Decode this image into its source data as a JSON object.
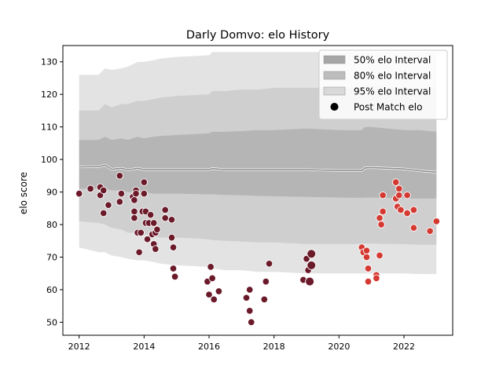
{
  "chart_data": {
    "type": "scatter",
    "title": "Darly Domvo: elo History",
    "xlabel": "",
    "ylabel": "elo score",
    "xlim": [
      2011.5,
      2023.5
    ],
    "ylim": [
      46,
      135
    ],
    "xticks": [
      2012,
      2014,
      2016,
      2018,
      2020,
      2022
    ],
    "yticks": [
      50,
      60,
      70,
      80,
      90,
      100,
      110,
      120,
      130
    ],
    "grid": false,
    "legend_position": "top-right",
    "legend": [
      {
        "label": "50% elo Interval",
        "color": "#a6a6a6",
        "kind": "band"
      },
      {
        "label": "80% elo Interval",
        "color": "#bdbdbd",
        "kind": "band"
      },
      {
        "label": "95% elo Interval",
        "color": "#d9d9d9",
        "kind": "band"
      },
      {
        "label": "Post Match elo",
        "color": "#000000",
        "kind": "marker"
      }
    ],
    "bands": {
      "x": [
        2012.0,
        2012.6,
        2012.8,
        2013.0,
        2013.3,
        2013.5,
        2013.8,
        2014.0,
        2014.3,
        2014.5,
        2015.0,
        2016.0,
        2016.1,
        2016.5,
        2017.0,
        2017.5,
        2018.0,
        2019.0,
        2020.0,
        2020.7,
        2020.8,
        2021.0,
        2021.5,
        2022.0,
        2022.5,
        2023.0
      ],
      "mean": [
        97.7,
        97.8,
        98.3,
        97.0,
        97.3,
        96.8,
        97.3,
        96.9,
        96.9,
        96.9,
        96.9,
        96.9,
        97.2,
        96.9,
        96.9,
        96.9,
        96.9,
        96.9,
        96.6,
        96.6,
        97.4,
        97.5,
        97.3,
        97.1,
        96.5,
        96.1
      ],
      "p50_lo": [
        91.0,
        91.0,
        91.0,
        90.5,
        90.5,
        90.0,
        90.0,
        90.0,
        89.5,
        89.5,
        89.5,
        89.3,
        89.3,
        89.1,
        89.0,
        88.8,
        88.7,
        88.5,
        88.3,
        88.2,
        88.3,
        88.3,
        88.2,
        88.1,
        88.0,
        88.0
      ],
      "p50_hi": [
        106.0,
        106.0,
        107.0,
        106.0,
        106.5,
        106.0,
        107.0,
        106.5,
        107.0,
        107.2,
        107.5,
        108.0,
        108.5,
        108.5,
        108.7,
        109.0,
        109.0,
        109.5,
        109.0,
        109.0,
        110.0,
        110.0,
        109.5,
        109.0,
        109.0,
        108.5
      ],
      "p80_lo": [
        81.0,
        80.5,
        80.0,
        79.0,
        78.5,
        77.5,
        77.5,
        77.0,
        76.5,
        76.0,
        76.0,
        75.5,
        75.2,
        75.0,
        74.8,
        74.5,
        74.5,
        74.0,
        74.0,
        74.0,
        74.2,
        74.2,
        74.0,
        74.0,
        73.8,
        73.8
      ],
      "p80_hi": [
        115.0,
        115.0,
        117.0,
        116.0,
        117.0,
        117.0,
        118.0,
        118.0,
        118.5,
        119.0,
        119.5,
        120.0,
        121.0,
        121.0,
        121.5,
        121.5,
        122.0,
        122.0,
        122.0,
        122.0,
        122.5,
        122.5,
        122.0,
        122.0,
        122.0,
        122.0
      ],
      "p95_lo": [
        73.0,
        71.5,
        71.5,
        70.5,
        70.0,
        69.5,
        69.0,
        69.0,
        68.5,
        68.0,
        67.5,
        67.0,
        66.5,
        66.0,
        66.0,
        65.5,
        65.5,
        65.0,
        65.0,
        65.0,
        65.0,
        65.0,
        65.0,
        65.0,
        64.8,
        64.8
      ],
      "p95_hi": [
        126.0,
        126.0,
        128.0,
        127.5,
        128.0,
        128.5,
        130.0,
        130.0,
        130.5,
        131.0,
        131.5,
        132.0,
        133.0,
        133.0,
        133.0,
        133.0,
        133.0,
        133.0,
        133.0,
        133.0,
        133.0,
        133.0,
        133.0,
        133.0,
        133.0,
        133.0
      ]
    },
    "series": [
      {
        "color": "#6b1a2a",
        "points": [
          [
            2012.0,
            89.5
          ],
          [
            2012.35,
            91.0
          ],
          [
            2012.65,
            91.5
          ],
          [
            2012.65,
            89.0
          ],
          [
            2012.75,
            90.5
          ],
          [
            2012.75,
            83.5
          ],
          [
            2012.9,
            86.0
          ],
          [
            2013.25,
            95.0
          ],
          [
            2013.25,
            87.0
          ],
          [
            2013.3,
            89.5
          ],
          [
            2013.65,
            88.5
          ],
          [
            2013.7,
            87.5
          ],
          [
            2013.7,
            84.0
          ],
          [
            2013.7,
            82.0
          ],
          [
            2013.75,
            90.5
          ],
          [
            2013.75,
            89.5
          ],
          [
            2013.8,
            77.5
          ],
          [
            2013.85,
            71.5
          ],
          [
            2013.9,
            77.5
          ],
          [
            2013.95,
            84.0
          ],
          [
            2014.0,
            93.0
          ],
          [
            2014.0,
            89.5
          ],
          [
            2014.05,
            84.0
          ],
          [
            2014.05,
            80.5
          ],
          [
            2014.1,
            75.5
          ],
          [
            2014.15,
            80.5
          ],
          [
            2014.2,
            83.0
          ],
          [
            2014.25,
            77.0
          ],
          [
            2014.3,
            80.5
          ],
          [
            2014.3,
            74.0
          ],
          [
            2014.35,
            72.5
          ],
          [
            2014.35,
            77.5
          ],
          [
            2014.4,
            78.5
          ],
          [
            2014.65,
            84.5
          ],
          [
            2014.65,
            82.0
          ],
          [
            2014.85,
            76.0
          ],
          [
            2014.85,
            81.5
          ],
          [
            2014.9,
            73.0
          ],
          [
            2014.9,
            66.5
          ],
          [
            2014.95,
            64.0
          ],
          [
            2015.95,
            62.5
          ],
          [
            2016.0,
            58.5
          ],
          [
            2016.05,
            67.0
          ],
          [
            2016.1,
            63.5
          ],
          [
            2016.15,
            57.0
          ],
          [
            2016.3,
            59.5
          ],
          [
            2017.15,
            57.5
          ],
          [
            2017.25,
            60.0
          ],
          [
            2017.25,
            53.5
          ],
          [
            2017.3,
            50.0
          ],
          [
            2017.7,
            57.0
          ],
          [
            2017.75,
            62.5
          ],
          [
            2017.85,
            68.0
          ],
          [
            2018.9,
            63.0
          ],
          [
            2019.0,
            69.5
          ],
          [
            2019.05,
            66.0
          ]
        ],
        "large_points": [
          [
            2019.15,
            71.0
          ],
          [
            2019.15,
            67.5
          ],
          [
            2019.1,
            62.5
          ]
        ]
      },
      {
        "color": "#d43a32",
        "points": [
          [
            2020.7,
            73.0
          ],
          [
            2020.75,
            71.5
          ],
          [
            2020.85,
            70.0
          ],
          [
            2020.85,
            72.0
          ],
          [
            2020.9,
            66.5
          ],
          [
            2020.9,
            62.5
          ],
          [
            2021.15,
            64.5
          ],
          [
            2021.15,
            63.5
          ],
          [
            2021.25,
            70.5
          ],
          [
            2021.25,
            82.0
          ],
          [
            2021.3,
            80.0
          ],
          [
            2021.35,
            84.0
          ],
          [
            2021.35,
            89.0
          ],
          [
            2021.75,
            93.0
          ],
          [
            2021.75,
            88.0
          ],
          [
            2021.8,
            85.5
          ],
          [
            2021.85,
            91.0
          ],
          [
            2021.85,
            89.0
          ],
          [
            2021.9,
            84.5
          ],
          [
            2022.1,
            89.0
          ],
          [
            2022.1,
            83.5
          ],
          [
            2022.3,
            84.5
          ],
          [
            2022.3,
            79.0
          ],
          [
            2022.8,
            78.0
          ],
          [
            2023.0,
            81.0
          ]
        ]
      }
    ]
  }
}
